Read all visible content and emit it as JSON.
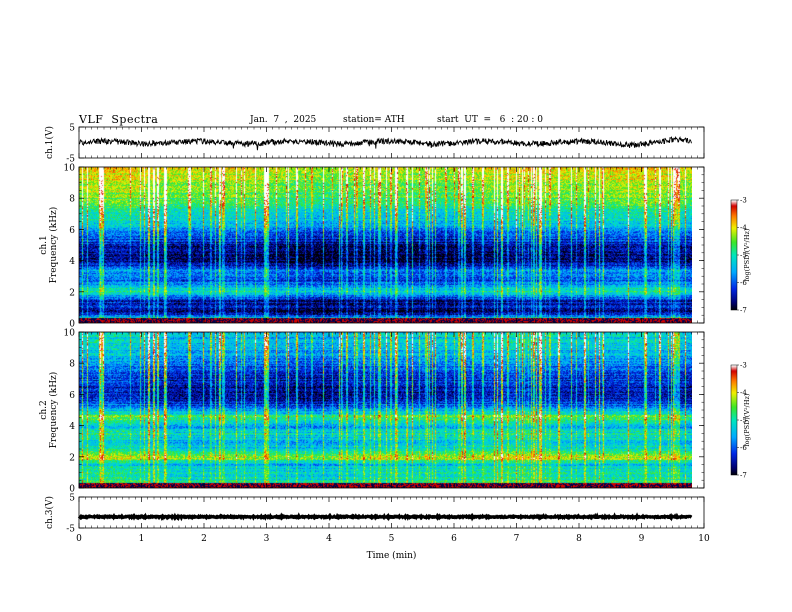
{
  "header": {
    "title": "VLF  Spectra",
    "date": "Jan.  7  ,  2025",
    "station": "station= ATH",
    "start_ut": "start  UT  =   6  : 20 : 0"
  },
  "chart_data": [
    {
      "type": "line",
      "name": "ch1-waveform",
      "ylabel": "ch.1(V)",
      "ylim": [
        -5,
        5
      ],
      "yticks": [
        "5",
        "-5"
      ],
      "xlim": [
        0,
        10
      ],
      "x_end": 9.8,
      "mean": 0,
      "amplitude": 0.9,
      "color": "#000000"
    },
    {
      "type": "heatmap",
      "name": "ch1-spectrogram",
      "ylabel": "ch.1\nFrequency  (kHz)",
      "ylim": [
        0,
        10
      ],
      "yticks": [
        "0",
        "2",
        "4",
        "6",
        "8",
        "10"
      ],
      "xlim": [
        0,
        10
      ],
      "x_end": 9.8,
      "colorbar": {
        "label": "log(PSD)(V²/Hz)",
        "range": [
          -7,
          -3
        ],
        "ticks": [
          "-3",
          "-4",
          "-5",
          "-6",
          "-7"
        ]
      },
      "profile_khz_vs_logpsd": [
        [
          0,
          -4.0
        ],
        [
          0.3,
          -5.0
        ],
        [
          0.6,
          -6.7
        ],
        [
          1.0,
          -6.6
        ],
        [
          1.5,
          -6.5
        ],
        [
          2.0,
          -5.1
        ],
        [
          2.4,
          -5.6
        ],
        [
          2.8,
          -6.1
        ],
        [
          3.4,
          -5.8
        ],
        [
          3.8,
          -6.6
        ],
        [
          4.6,
          -6.8
        ],
        [
          5.4,
          -6.3
        ],
        [
          6.2,
          -5.6
        ],
        [
          7.0,
          -5.1
        ],
        [
          8.0,
          -4.7
        ],
        [
          9.0,
          -4.3
        ],
        [
          10.0,
          -4.1
        ]
      ]
    },
    {
      "type": "heatmap",
      "name": "ch2-spectrogram",
      "ylabel": "ch.2\nFrequency  (kHz)",
      "ylim": [
        0,
        10
      ],
      "yticks": [
        "0",
        "2",
        "4",
        "6",
        "8",
        "10"
      ],
      "xlim": [
        0,
        10
      ],
      "x_end": 9.8,
      "colorbar": {
        "label": "log(PSD)(V²/Hz)",
        "range": [
          -7,
          -3
        ],
        "ticks": [
          "-3",
          "-4",
          "-5",
          "-6",
          "-7"
        ]
      },
      "profile_khz_vs_logpsd": [
        [
          0,
          -4.0
        ],
        [
          0.5,
          -5.0
        ],
        [
          1.0,
          -5.0
        ],
        [
          1.5,
          -5.4
        ],
        [
          2.0,
          -4.2
        ],
        [
          2.3,
          -4.9
        ],
        [
          2.8,
          -5.4
        ],
        [
          3.5,
          -5.0
        ],
        [
          4.0,
          -5.6
        ],
        [
          4.6,
          -4.6
        ],
        [
          5.0,
          -5.6
        ],
        [
          5.6,
          -6.3
        ],
        [
          6.5,
          -6.5
        ],
        [
          7.5,
          -6.1
        ],
        [
          8.5,
          -5.5
        ],
        [
          9.5,
          -5.3
        ],
        [
          10.0,
          -5.3
        ]
      ]
    },
    {
      "type": "line",
      "name": "ch3-waveform",
      "ylabel": "ch.3(V)",
      "ylim": [
        -5,
        5
      ],
      "yticks": [
        "5",
        "-5"
      ],
      "xlim": [
        0,
        10
      ],
      "x_end": 9.8,
      "mean": -1.4,
      "amplitude": 0.2,
      "color": "#000000"
    }
  ],
  "x_axis": {
    "label": "Time  (min)",
    "ticks": [
      "0",
      "1",
      "2",
      "3",
      "4",
      "5",
      "6",
      "7",
      "8",
      "9",
      "10"
    ]
  }
}
